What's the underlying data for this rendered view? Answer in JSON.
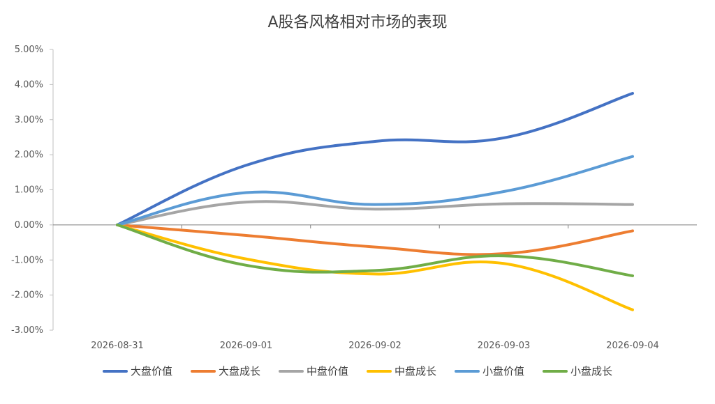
{
  "chart_data": {
    "type": "line",
    "title": "A股各风格相对市场的表现",
    "xlabel": "",
    "ylabel": "",
    "categories": [
      "2026-08-31",
      "2026-09-01",
      "2026-09-02",
      "2026-09-03",
      "2026-09-04"
    ],
    "y_ticks": [
      "5.00%",
      "4.00%",
      "3.00%",
      "2.00%",
      "1.00%",
      "0.00%",
      "-1.00%",
      "-2.00%",
      "-3.00%"
    ],
    "ylim": [
      -3,
      5
    ],
    "grid": false,
    "legend_position": "bottom",
    "series": [
      {
        "name": "大盘价值",
        "color": "#4472C4",
        "values": [
          0.0,
          1.7,
          2.38,
          2.48,
          3.75
        ]
      },
      {
        "name": "大盘成长",
        "color": "#ED7D31",
        "values": [
          0.0,
          -0.3,
          -0.63,
          -0.82,
          -0.17
        ]
      },
      {
        "name": "中盘价值",
        "color": "#A5A5A5",
        "values": [
          0.0,
          0.65,
          0.45,
          0.6,
          0.58
        ]
      },
      {
        "name": "中盘成长",
        "color": "#FFC000",
        "values": [
          0.0,
          -0.97,
          -1.4,
          -1.1,
          -2.42
        ]
      },
      {
        "name": "小盘价值",
        "color": "#5B9BD5",
        "values": [
          0.0,
          0.92,
          0.58,
          0.95,
          1.95
        ]
      },
      {
        "name": "小盘成长",
        "color": "#70AD47",
        "values": [
          0.0,
          -1.15,
          -1.3,
          -0.88,
          -1.45
        ]
      }
    ]
  }
}
